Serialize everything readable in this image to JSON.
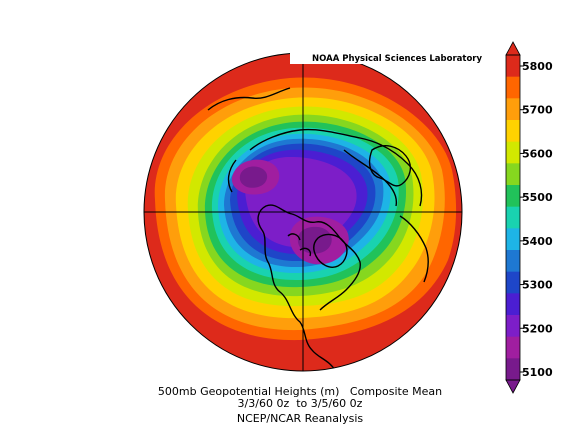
{
  "watermark": "NOAA Physical Sciences Laboratory",
  "title": {
    "line1": "500mb Geopotential Heights (m)   Composite Mean",
    "line2": "3/3/60 0z  to 3/5/60 0z",
    "line3": "NCEP/NCAR Reanalysis"
  },
  "colorbar": {
    "labels": [
      "5800",
      "5700",
      "5600",
      "5500",
      "5400",
      "5300",
      "5200",
      "5100"
    ],
    "colors": [
      "#dd2a1b",
      "#ff6600",
      "#ff9e0b",
      "#ffd200",
      "#d2e800",
      "#86d71f",
      "#21c25a",
      "#19d2b0",
      "#1eb4e6",
      "#1e78d2",
      "#1e46c8",
      "#4b1ed2",
      "#7d1ec8",
      "#a01ea0",
      "#781a8c"
    ]
  },
  "map": {
    "projection": "north-polar-stereographic",
    "contour_levels": [
      "5800",
      "5750",
      "5700",
      "5650",
      "5600",
      "5550",
      "5500",
      "5450",
      "5400",
      "5350",
      "5300",
      "5250",
      "5200",
      "5150",
      "5100"
    ]
  }
}
